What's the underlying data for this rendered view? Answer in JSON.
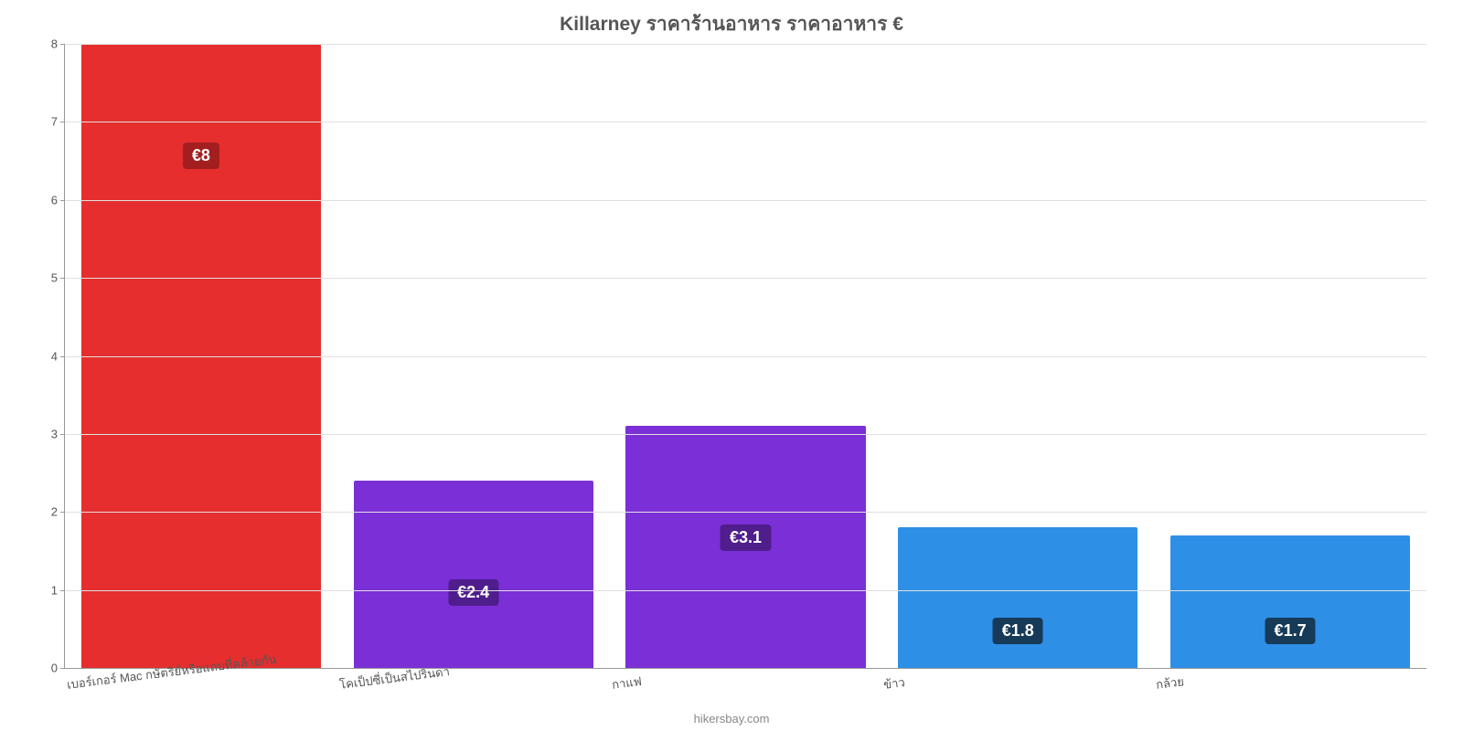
{
  "chart": {
    "type": "bar",
    "title": "Killarney ราคาร้านอาหาร ราคาอาหาร €",
    "title_fontsize": 21,
    "title_color": "#555555",
    "background_color": "#ffffff",
    "grid_color": "#e0e0e0",
    "axis_color": "#999999",
    "axis_label_color": "#555555",
    "axis_label_fontsize": 13,
    "ylim": [
      0,
      8
    ],
    "ytick_step": 1,
    "yticks": [
      "0",
      "1",
      "2",
      "3",
      "4",
      "5",
      "6",
      "7",
      "8"
    ],
    "categories": [
      "เบอร์เกอร์ Mac กษัตริย์หรือแถบที่คล้ายกัน",
      "โคเป็ปซี่เป็นสไปรินดา",
      "กาแฟ",
      "ข้าว",
      "กล้วย"
    ],
    "values": [
      8,
      2.4,
      3.1,
      1.8,
      1.7
    ],
    "value_labels": [
      "€8",
      "€2.4",
      "€3.1",
      "€1.8",
      "€1.7"
    ],
    "bar_colors": [
      "#e62e2e",
      "#7b2fd6",
      "#7b2fd6",
      "#2e8fe6",
      "#2e8fe6"
    ],
    "badge_bg_colors": [
      "#a31f1f",
      "#4f1d8c",
      "#4f1d8c",
      "#163a57",
      "#163a57"
    ],
    "badge_text_color": "#ffffff",
    "badge_fontsize": 18,
    "bar_width_pct": 88,
    "x_label_rotation_deg": -7,
    "badge_value_offset": 1.6
  },
  "credit": "hikersbay.com",
  "credit_color": "#888888",
  "credit_fontsize": 13
}
